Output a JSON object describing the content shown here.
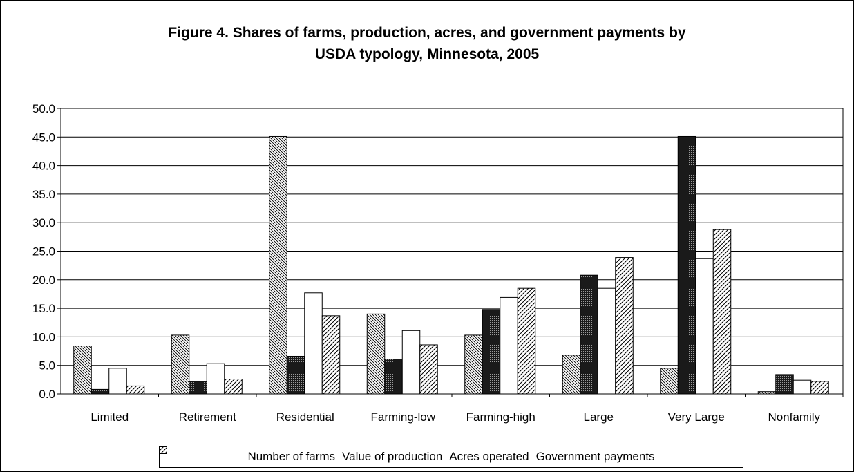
{
  "chart_data": {
    "type": "bar",
    "title": "Figure 4. Shares of farms, production, acres, and government payments by\nUSDA typology, Minnesota, 2005",
    "categories": [
      "Limited",
      "Retirement",
      "Residential",
      "Farming-low",
      "Farming-high",
      "Large",
      "Very Large",
      "Nonfamily"
    ],
    "series": [
      {
        "name": "Number of farms",
        "pattern": "diagonal-dense",
        "values": [
          8.4,
          10.3,
          45.1,
          14.0,
          10.3,
          6.8,
          4.5,
          0.4
        ]
      },
      {
        "name": "Value of production",
        "pattern": "crosshatch-dark",
        "values": [
          0.8,
          2.2,
          6.6,
          6.1,
          14.8,
          20.8,
          45.1,
          3.4
        ]
      },
      {
        "name": "Acres operated",
        "pattern": "white",
        "values": [
          4.5,
          5.3,
          17.7,
          11.1,
          16.9,
          18.5,
          23.7,
          2.4
        ]
      },
      {
        "name": "Government payments",
        "pattern": "diagonal-sparse",
        "values": [
          1.4,
          2.6,
          13.7,
          8.6,
          18.5,
          23.9,
          28.8,
          2.2
        ]
      }
    ],
    "ylim": [
      0,
      50
    ],
    "yticks": [
      "0.0",
      "5.0",
      "10.0",
      "15.0",
      "20.0",
      "25.0",
      "30.0",
      "35.0",
      "40.0",
      "45.0",
      "50.0"
    ],
    "grid": true,
    "legend_position": "bottom",
    "xlabel": "",
    "ylabel": ""
  }
}
